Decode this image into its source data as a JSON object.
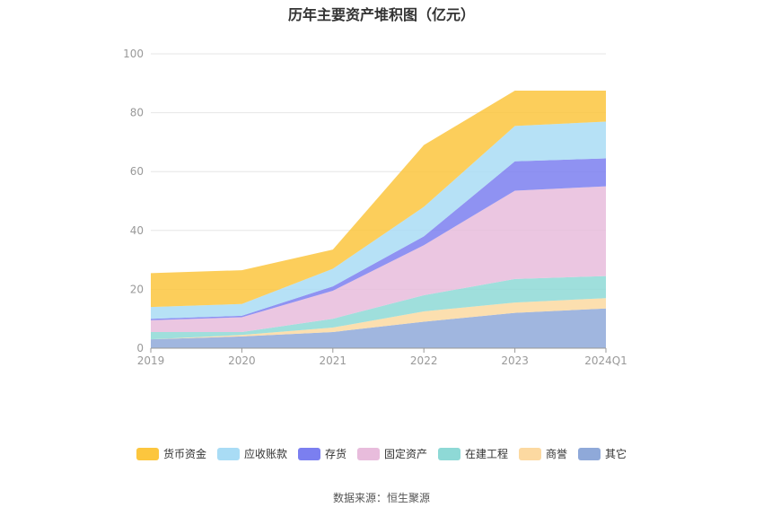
{
  "chart_data": {
    "type": "area",
    "stacked": true,
    "title": "历年主要资产堆积图（亿元）",
    "categories": [
      "2019",
      "2020",
      "2021",
      "2022",
      "2023",
      "2024Q1"
    ],
    "ylim": [
      0,
      100
    ],
    "yticks": [
      "0",
      "20",
      "40",
      "60",
      "80",
      "100"
    ],
    "grid": true,
    "legend_position": "bottom",
    "series": [
      {
        "name": "其它",
        "color": "#8fa9d9",
        "values": [
          3.0,
          4.0,
          5.5,
          9.0,
          12.0,
          13.5
        ]
      },
      {
        "name": "商誉",
        "color": "#fcd9a1",
        "values": [
          0.0,
          0.5,
          1.5,
          3.5,
          3.5,
          3.5
        ]
      },
      {
        "name": "在建工程",
        "color": "#8ed9d6",
        "values": [
          2.5,
          1.0,
          3.0,
          5.5,
          8.0,
          7.5
        ]
      },
      {
        "name": "固定资产",
        "color": "#e8bcdc",
        "values": [
          4.0,
          5.0,
          9.5,
          17.0,
          30.0,
          30.5
        ]
      },
      {
        "name": "存货",
        "color": "#7b7ff0",
        "values": [
          0.5,
          0.5,
          1.5,
          3.0,
          10.0,
          9.5
        ]
      },
      {
        "name": "应收账款",
        "color": "#a9dcf5",
        "values": [
          4.0,
          4.0,
          6.0,
          10.0,
          12.0,
          12.5
        ]
      },
      {
        "name": "货币资金",
        "color": "#fcc63e",
        "values": [
          11.5,
          11.5,
          6.5,
          21.0,
          12.0,
          10.5
        ]
      }
    ],
    "legend_order": [
      "货币资金",
      "应收账款",
      "存货",
      "固定资产",
      "在建工程",
      "商誉",
      "其它"
    ]
  },
  "source": "数据来源：恒生聚源"
}
